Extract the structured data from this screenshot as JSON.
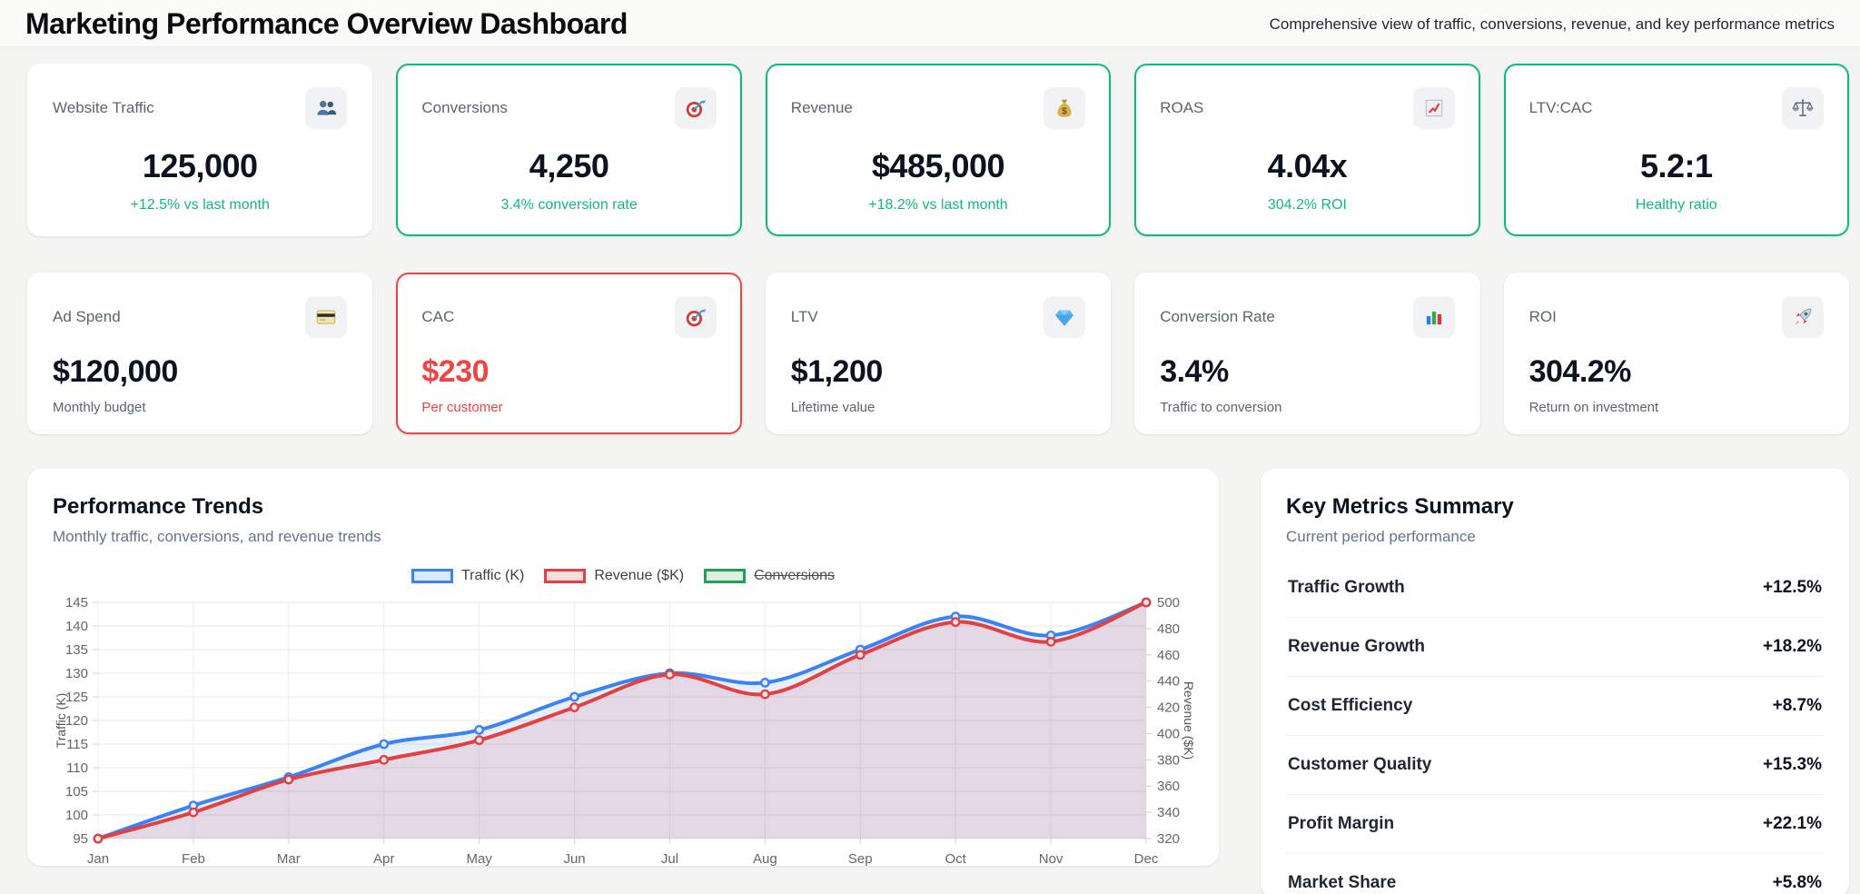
{
  "header": {
    "title": "Marketing Performance Overview Dashboard",
    "subtitle": "Comprehensive view of traffic, conversions, revenue, and key performance metrics"
  },
  "kpi_row1": [
    {
      "label": "Website Traffic",
      "icon": "users-icon",
      "value": "125,000",
      "sub": "+12.5% vs last month",
      "border": "none",
      "sub_color": "green"
    },
    {
      "label": "Conversions",
      "icon": "target-icon",
      "value": "4,250",
      "sub": "3.4% conversion rate",
      "border": "green",
      "sub_color": "green"
    },
    {
      "label": "Revenue",
      "icon": "money-bag-icon",
      "value": "$485,000",
      "sub": "+18.2% vs last month",
      "border": "green",
      "sub_color": "green"
    },
    {
      "label": "ROAS",
      "icon": "chart-increasing-icon",
      "value": "4.04x",
      "sub": "304.2% ROI",
      "border": "green",
      "sub_color": "green"
    },
    {
      "label": "LTV:CAC",
      "icon": "balance-scale-icon",
      "value": "5.2:1",
      "sub": "Healthy ratio",
      "border": "green",
      "sub_color": "green"
    }
  ],
  "kpi_row2": [
    {
      "label": "Ad Spend",
      "icon": "credit-card-icon",
      "value": "$120,000",
      "sub": "Monthly budget",
      "border": "none",
      "value_color": "dark",
      "sub_color": "gray"
    },
    {
      "label": "CAC",
      "icon": "target-icon",
      "value": "$230",
      "sub": "Per customer",
      "border": "red",
      "value_color": "red",
      "sub_color": "red"
    },
    {
      "label": "LTV",
      "icon": "gem-icon",
      "value": "$1,200",
      "sub": "Lifetime value",
      "border": "none",
      "value_color": "dark",
      "sub_color": "gray"
    },
    {
      "label": "Conversion Rate",
      "icon": "bar-chart-icon",
      "value": "3.4%",
      "sub": "Traffic to conversion",
      "border": "none",
      "value_color": "dark",
      "sub_color": "gray"
    },
    {
      "label": "ROI",
      "icon": "rocket-icon",
      "value": "304.2%",
      "sub": "Return on investment",
      "border": "none",
      "value_color": "dark",
      "sub_color": "gray"
    }
  ],
  "chart_panel": {
    "title": "Performance Trends",
    "subtitle": "Monthly traffic, conversions, and revenue trends"
  },
  "chart_data": {
    "type": "line",
    "x": [
      "Jan",
      "Feb",
      "Mar",
      "Apr",
      "May",
      "Jun",
      "Jul",
      "Aug",
      "Sep",
      "Oct",
      "Nov",
      "Dec"
    ],
    "series": [
      {
        "name": "Traffic (K)",
        "axis": "left",
        "hidden": false,
        "color": "#3b82f6",
        "fill": "rgba(59,130,246,0.13)",
        "legend_fill": "#dbe9fc",
        "values": [
          95,
          102,
          108,
          115,
          118,
          125,
          130,
          128,
          135,
          142,
          138,
          145
        ]
      },
      {
        "name": "Revenue ($K)",
        "axis": "right",
        "hidden": false,
        "color": "#e14141",
        "fill": "rgba(225,65,65,0.13)",
        "legend_fill": "#fbdcdc",
        "values": [
          320,
          340,
          365,
          380,
          395,
          420,
          445,
          430,
          460,
          485,
          470,
          500
        ]
      },
      {
        "name": "Conversions",
        "axis": "left",
        "hidden": true,
        "color": "#22a05a",
        "fill": "rgba(34,160,90,0.13)",
        "legend_fill": "#dcf0e3",
        "values": []
      }
    ],
    "y_left": {
      "label": "Traffic (K)",
      "min": 95,
      "max": 145,
      "step": 5
    },
    "y_right": {
      "label": "Revenue ($K)",
      "min": 320,
      "max": 500,
      "step": 20
    },
    "grid": true,
    "legend_position": "top"
  },
  "summary_panel": {
    "title": "Key Metrics Summary",
    "subtitle": "Current period performance",
    "rows": [
      {
        "label": "Traffic Growth",
        "value": "+12.5%"
      },
      {
        "label": "Revenue Growth",
        "value": "+18.2%"
      },
      {
        "label": "Cost Efficiency",
        "value": "+8.7%"
      },
      {
        "label": "Customer Quality",
        "value": "+15.3%"
      },
      {
        "label": "Profit Margin",
        "value": "+22.1%"
      },
      {
        "label": "Market Share",
        "value": "+5.8%"
      }
    ]
  },
  "colors": {
    "green": "#10b981",
    "red": "#ef4444",
    "blue": "#3b82f6"
  }
}
